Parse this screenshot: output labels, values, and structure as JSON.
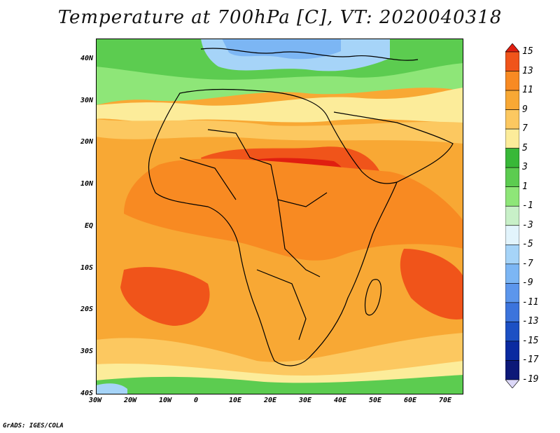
{
  "title": "Temperature at 700hPa [C], VT: 2020040318",
  "credit": "GrADS: IGES/COLA",
  "map": {
    "lon_range": [
      -30,
      75
    ],
    "lat_range": [
      -40,
      45
    ],
    "lat_ticks": [
      {
        "value": 40,
        "label": "40N"
      },
      {
        "value": 30,
        "label": "30N"
      },
      {
        "value": 20,
        "label": "20N"
      },
      {
        "value": 10,
        "label": "10N"
      },
      {
        "value": 0,
        "label": "EQ"
      },
      {
        "value": -10,
        "label": "10S"
      },
      {
        "value": -20,
        "label": "20S"
      },
      {
        "value": -30,
        "label": "30S"
      },
      {
        "value": -40,
        "label": "40S"
      }
    ],
    "lon_ticks": [
      {
        "value": -30,
        "label": "30W"
      },
      {
        "value": -20,
        "label": "20W"
      },
      {
        "value": -10,
        "label": "10W"
      },
      {
        "value": 0,
        "label": "0"
      },
      {
        "value": 10,
        "label": "10E"
      },
      {
        "value": 20,
        "label": "20E"
      },
      {
        "value": 30,
        "label": "30E"
      },
      {
        "value": 40,
        "label": "40E"
      },
      {
        "value": 50,
        "label": "50E"
      },
      {
        "value": 60,
        "label": "60E"
      },
      {
        "value": 70,
        "label": "70E"
      }
    ]
  },
  "colorbar": {
    "levels": [
      "15",
      "13",
      "11",
      "9",
      "7",
      "5",
      "3",
      "1",
      "-1",
      "-3",
      "-5",
      "-7",
      "-9",
      "-11",
      "-13",
      "-15",
      "-17",
      "-19"
    ],
    "colors": [
      "#e01e10",
      "#f0541a",
      "#f88a22",
      "#f8a834",
      "#fcc860",
      "#fcec9a",
      "#38b838",
      "#5ccc50",
      "#8ee678",
      "#c8f0c8",
      "#e2f4fc",
      "#a6d4f8",
      "#7cb6f4",
      "#5c96ec",
      "#3c74dc",
      "#1c50c4",
      "#0a2aa0",
      "#0c1878",
      "#dcd8f8"
    ]
  },
  "colors": {
    "coast": "#000000"
  }
}
